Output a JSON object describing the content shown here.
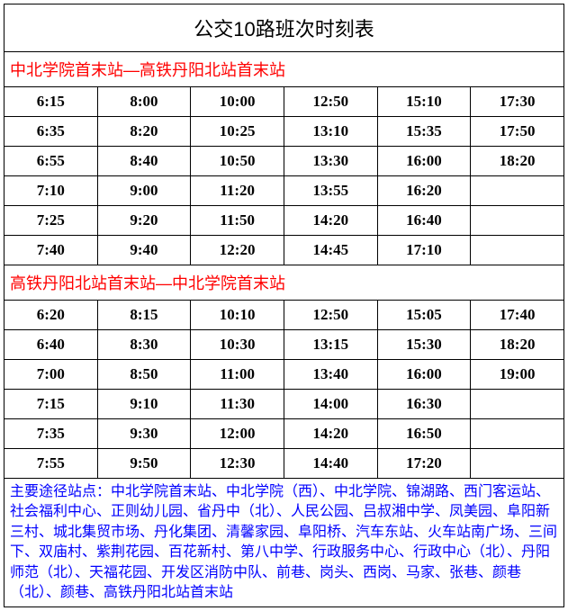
{
  "title": "公交10路班次时刻表",
  "direction1": {
    "label": "中北学院首末站—高铁丹阳北站首末站",
    "rows": [
      [
        "6:15",
        "8:00",
        "10:00",
        "12:50",
        "15:10",
        "17:30"
      ],
      [
        "6:35",
        "8:20",
        "10:25",
        "13:10",
        "15:35",
        "17:50"
      ],
      [
        "6:55",
        "8:40",
        "10:50",
        "13:30",
        "16:00",
        "18:20"
      ],
      [
        "7:10",
        "9:00",
        "11:20",
        "13:55",
        "16:20",
        ""
      ],
      [
        "7:25",
        "9:20",
        "11:50",
        "14:20",
        "16:40",
        ""
      ],
      [
        "7:40",
        "9:40",
        "12:20",
        "14:45",
        "17:10",
        ""
      ]
    ]
  },
  "direction2": {
    "label": "高铁丹阳北站首末站—中北学院首末站",
    "rows": [
      [
        "6:20",
        "8:15",
        "10:10",
        "12:50",
        "15:05",
        "17:40"
      ],
      [
        "6:40",
        "8:30",
        "10:30",
        "13:15",
        "15:30",
        "18:20"
      ],
      [
        "7:00",
        "8:50",
        "11:00",
        "13:40",
        "16:00",
        "19:00"
      ],
      [
        "7:15",
        "9:10",
        "11:30",
        "14:00",
        "16:30",
        ""
      ],
      [
        "7:35",
        "9:30",
        "12:00",
        "14:20",
        "16:50",
        ""
      ],
      [
        "7:55",
        "9:50",
        "12:30",
        "14:40",
        "17:20",
        ""
      ]
    ]
  },
  "footer": "主要途径站点：中北学院首末站、中北学院（西）、中北学院、锦湖路、西门客运站、社会福利中心、正则幼儿园、省丹中（北）、人民公园、吕叔湘中学、凤美园、阜阳新三村、城北集贸市场、丹化集团、清馨家园、阜阳桥、汽车东站、火车站南广场、三间下、双庙村、紫荆花园、百花新村、第八中学、行政服务中心、行政中心（北）、丹阳师范（北）、天福花园、开发区消防中队、前巷、岗头、西岗、马家、张巷、颜巷（北）、颜巷、高铁丹阳北站首末站",
  "style": {
    "columns": 6,
    "border_color": "#000000",
    "title_color": "#000000",
    "direction_color": "#ff0000",
    "time_color": "#000000",
    "footer_color": "#0000ff",
    "background_color": "#ffffff",
    "title_fontsize": 22,
    "direction_fontsize": 18,
    "time_fontsize": 17,
    "footer_fontsize": 16
  }
}
